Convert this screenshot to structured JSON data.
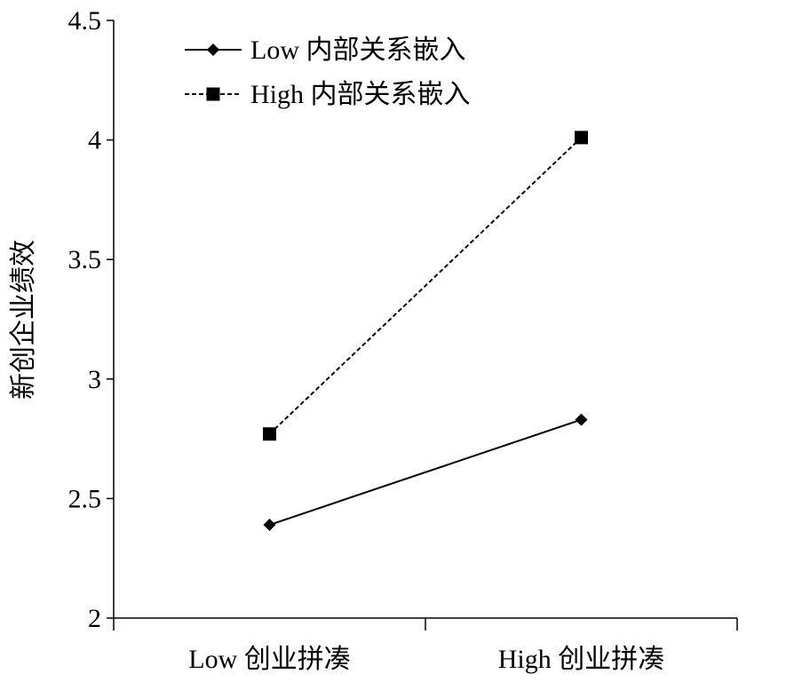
{
  "chart_data": {
    "type": "line",
    "title": "",
    "xlabel": "",
    "ylabel": "新创企业绩效",
    "categories": [
      "Low 创业拼凑",
      "High 创业拼凑"
    ],
    "ylim": [
      2,
      4.5
    ],
    "yticks": [
      "2",
      "2.5",
      "3",
      "3.5",
      "4",
      "4.5"
    ],
    "grid": false,
    "legend_position": "top-left",
    "series": [
      {
        "name": "Low 内部关系嵌入",
        "values": [
          2.39,
          2.83
        ],
        "line_style": "solid",
        "marker": "diamond",
        "color": "#000000"
      },
      {
        "name": "High 内部关系嵌入",
        "values": [
          2.77,
          4.01
        ],
        "line_style": "dashed",
        "marker": "square",
        "color": "#000000"
      }
    ]
  }
}
